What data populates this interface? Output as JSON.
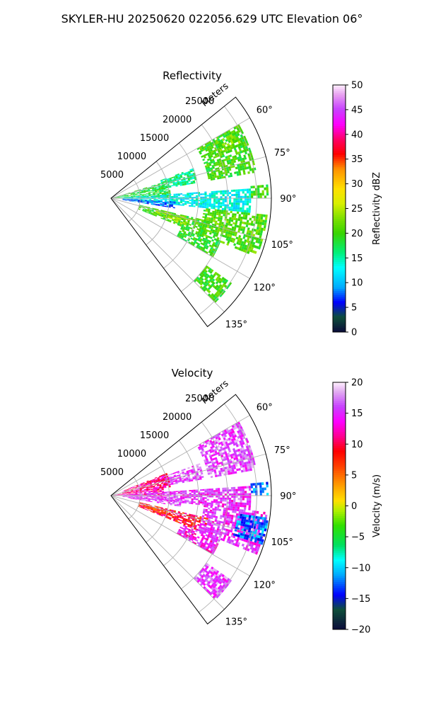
{
  "figure_title": "SKYLER-HU  20250620  022056.629 UTC Elevation 06°",
  "chart_data": [
    {
      "type": "polar-sector",
      "title": "Reflectivity",
      "range_axis_label": "Meters",
      "range_ticks": [
        "5000",
        "10000",
        "15000",
        "20000",
        "25000"
      ],
      "range_tick_values": [
        5000,
        10000,
        15000,
        20000,
        25000
      ],
      "range_max": 27500,
      "azimuth_ticks": [
        "60°",
        "75°",
        "90°",
        "105°",
        "120°",
        "135°"
      ],
      "azimuth_tick_values": [
        60,
        75,
        90,
        105,
        120,
        135
      ],
      "azimuth_range": [
        51,
        143
      ],
      "grid": true,
      "colorbar": {
        "label": "Reflectivity dBZ",
        "min": 0,
        "max": 50,
        "ticks": [
          "0",
          "5",
          "10",
          "15",
          "20",
          "25",
          "30",
          "35",
          "40",
          "45",
          "50"
        ],
        "tick_values": [
          0,
          5,
          10,
          15,
          20,
          25,
          30,
          35,
          40,
          45,
          50
        ]
      },
      "echo_regions": [
        {
          "az": [
            60,
            80
          ],
          "r": [
            17000,
            25000
          ],
          "value": 20
        },
        {
          "az": [
            62,
            68
          ],
          "r": [
            20000,
            24000
          ],
          "value": 22
        },
        {
          "az": [
            70,
            80
          ],
          "r": [
            9000,
            15000
          ],
          "value": 16
        },
        {
          "az": [
            73,
            89
          ],
          "r": [
            0,
            10000
          ],
          "value": 18
        },
        {
          "az": [
            86,
            96
          ],
          "r": [
            2000,
            24000
          ],
          "value": 13
        },
        {
          "az": [
            93,
            99
          ],
          "r": [
            2000,
            11000
          ],
          "value": 8
        },
        {
          "az": [
            96,
            112
          ],
          "r": [
            16000,
            27000
          ],
          "value": 21
        },
        {
          "az": [
            103,
            112
          ],
          "r": [
            5000,
            17000
          ],
          "value": 20
        },
        {
          "az": [
            104,
            110
          ],
          "r": [
            8000,
            14000
          ],
          "value": 23
        },
        {
          "az": [
            112,
            120
          ],
          "r": [
            13000,
            20000
          ],
          "value": 19
        },
        {
          "az": [
            125,
            135
          ],
          "r": [
            20000,
            25000
          ],
          "value": 20
        },
        {
          "az": [
            85,
            90
          ],
          "r": [
            24000,
            27000
          ],
          "value": 20
        }
      ]
    },
    {
      "type": "polar-sector",
      "title": "Velocity",
      "range_axis_label": "Meters",
      "range_ticks": [
        "5000",
        "10000",
        "15000",
        "20000",
        "25000"
      ],
      "range_tick_values": [
        5000,
        10000,
        15000,
        20000,
        25000
      ],
      "range_max": 27500,
      "azimuth_ticks": [
        "60°",
        "75°",
        "90°",
        "105°",
        "120°",
        "135°"
      ],
      "azimuth_tick_values": [
        60,
        75,
        90,
        105,
        120,
        135
      ],
      "azimuth_range": [
        51,
        143
      ],
      "grid": true,
      "colorbar": {
        "label": "Velocity (m/s)",
        "min": -20,
        "max": 20,
        "ticks": [
          "−20",
          "−15",
          "−10",
          "−5",
          "0",
          "5",
          "10",
          "15",
          "20"
        ],
        "tick_values": [
          -20,
          -15,
          -10,
          -5,
          0,
          5,
          10,
          15,
          20
        ]
      },
      "echo_regions": [
        {
          "az": [
            60,
            80
          ],
          "r": [
            17000,
            25000
          ],
          "value": 16
        },
        {
          "az": [
            70,
            80
          ],
          "r": [
            9000,
            16000
          ],
          "value": 16
        },
        {
          "az": [
            68,
            82
          ],
          "r": [
            2000,
            10000
          ],
          "value": 11
        },
        {
          "az": [
            80,
            90
          ],
          "r": [
            0,
            9000
          ],
          "value": 12
        },
        {
          "az": [
            86,
            96
          ],
          "r": [
            2000,
            24000
          ],
          "value": 15
        },
        {
          "az": [
            92,
            99
          ],
          "r": [
            3000,
            12000
          ],
          "value": 16
        },
        {
          "az": [
            103,
            112
          ],
          "r": [
            5000,
            17000
          ],
          "value": 9
        },
        {
          "az": [
            105,
            109
          ],
          "r": [
            6000,
            10000
          ],
          "value": 5
        },
        {
          "az": [
            96,
            112
          ],
          "r": [
            16000,
            27000
          ],
          "value": 15
        },
        {
          "az": [
            98,
            108
          ],
          "r": [
            22000,
            27000
          ],
          "value": -12
        },
        {
          "az": [
            112,
            120
          ],
          "r": [
            13000,
            20000
          ],
          "value": 14
        },
        {
          "az": [
            125,
            135
          ],
          "r": [
            20000,
            25000
          ],
          "value": 16
        },
        {
          "az": [
            85,
            90
          ],
          "r": [
            24000,
            27000
          ],
          "value": -12
        }
      ]
    }
  ]
}
